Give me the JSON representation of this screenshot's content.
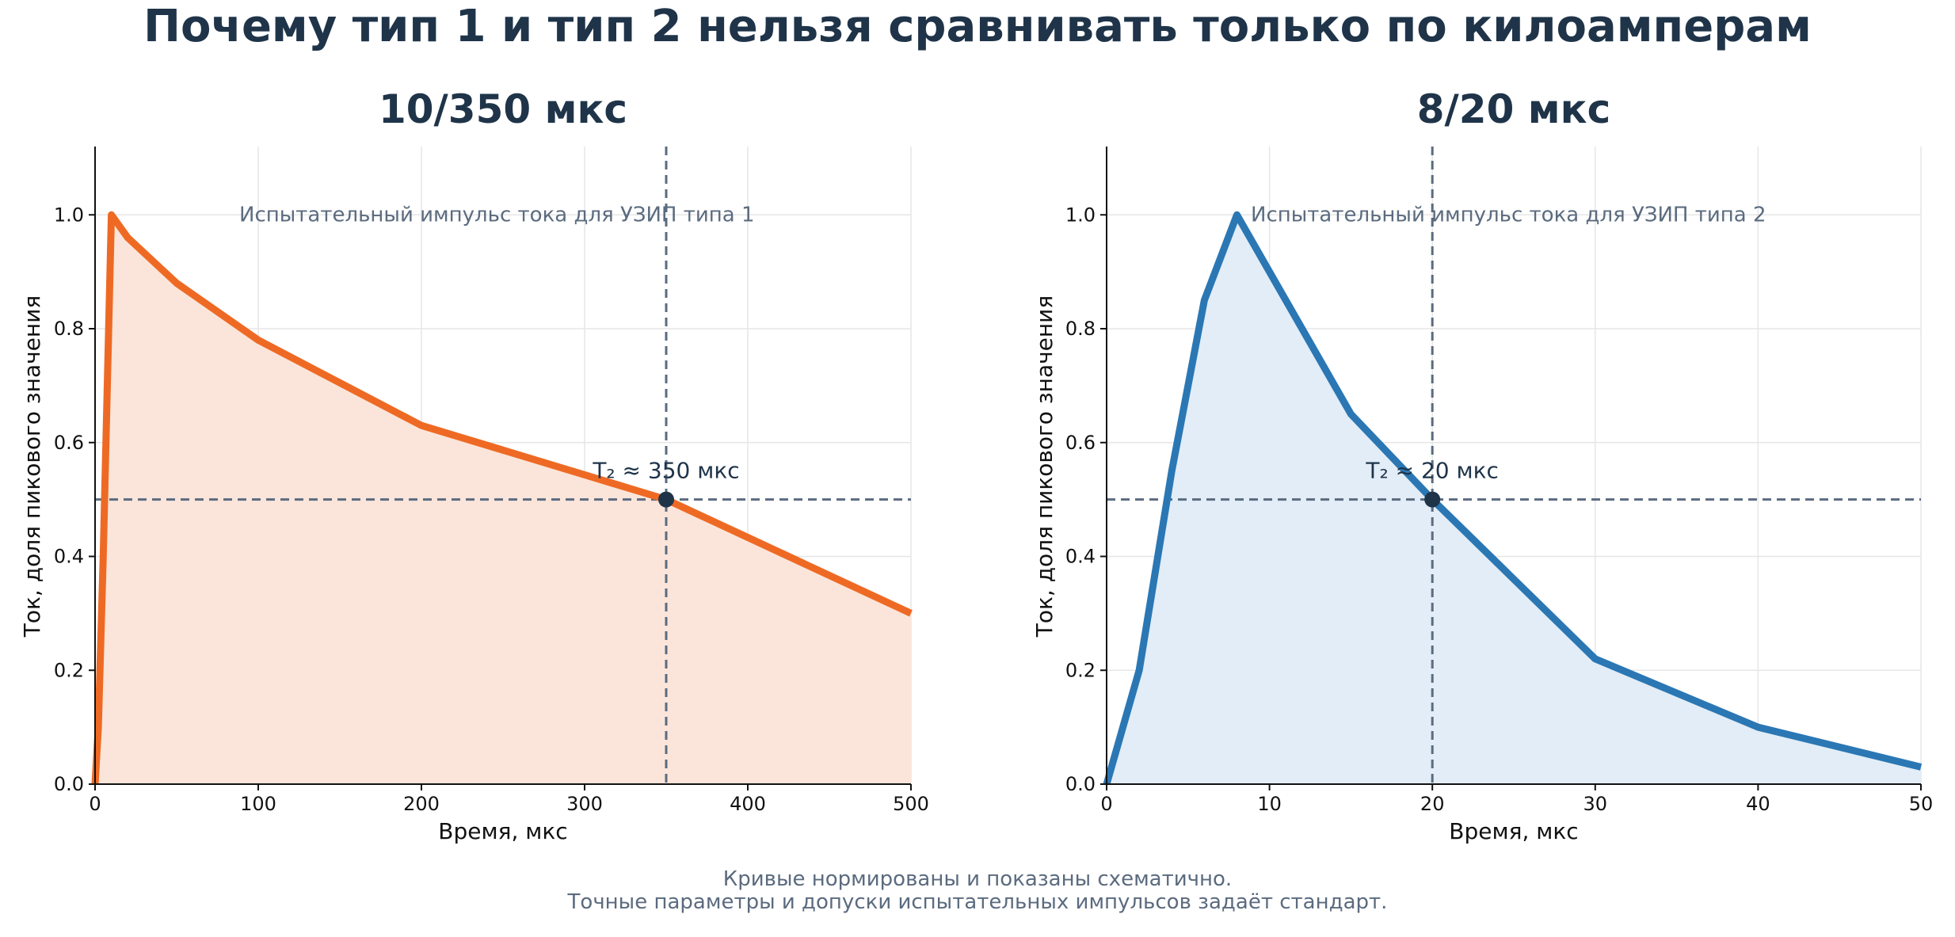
{
  "title": "Почему тип 1 и тип 2 нельзя сравнивать только по килоамперам",
  "footer": [
    "Кривые нормированы и показаны схематично.",
    "Точные параметры и допуски испытательных импульсов задаёт стандарт."
  ],
  "chart_data": [
    {
      "type": "area",
      "title": "10/350 мкс",
      "xlabel": "Время, мкс",
      "ylabel": "Ток, доля пикового значения",
      "xlim": [
        0,
        500
      ],
      "ylim": [
        0,
        1.12
      ],
      "xticks": [
        0,
        100,
        200,
        300,
        400,
        500
      ],
      "yticks": [
        0.0,
        0.2,
        0.4,
        0.6,
        0.8,
        1.0
      ],
      "grid": true,
      "color": "#ee6a24",
      "fill_color": "#fbe5da",
      "note": "Испытательный импульс тока для УЗИП типа 1",
      "series": [
        {
          "x": [
            0,
            2,
            5,
            10,
            20,
            50,
            100,
            200,
            350,
            500
          ],
          "y": [
            0,
            0.1,
            0.4,
            1.0,
            0.96,
            0.88,
            0.78,
            0.63,
            0.5,
            0.3
          ]
        }
      ],
      "reference": {
        "x": 350,
        "y": 0.5,
        "label": "T₂ ≈ 350 мкс"
      }
    },
    {
      "type": "area",
      "title": "8/20 мкс",
      "xlabel": "Время, мкс",
      "ylabel": "Ток, доля пикового значения",
      "xlim": [
        0,
        50
      ],
      "ylim": [
        0,
        1.12
      ],
      "xticks": [
        0,
        10,
        20,
        30,
        40,
        50
      ],
      "yticks": [
        0.0,
        0.2,
        0.4,
        0.6,
        0.8,
        1.0
      ],
      "grid": true,
      "color": "#2b77b4",
      "fill_color": "#e2edf7",
      "note": "Испытательный импульс тока для УЗИП типа 2",
      "series": [
        {
          "x": [
            0,
            2,
            4,
            6,
            8,
            15,
            20,
            30,
            40,
            50
          ],
          "y": [
            0,
            0.2,
            0.55,
            0.85,
            1.0,
            0.65,
            0.5,
            0.22,
            0.1,
            0.03
          ]
        }
      ],
      "reference": {
        "x": 20,
        "y": 0.5,
        "label": "T₂ ≈ 20 мкс"
      }
    }
  ]
}
